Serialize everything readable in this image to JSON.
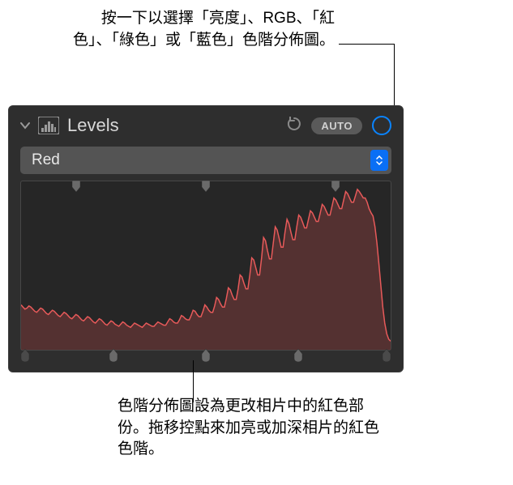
{
  "annotations": {
    "top": "按一下以選擇「亮度」、RGB、「紅色」、「綠色」或「藍色」色階分佈圖。",
    "bottom": "色階分佈圖設為更改相片中的紅色部份。拖移控點來加亮或加深相片的紅色色階。"
  },
  "panel": {
    "title": "Levels",
    "auto_label": "AUTO",
    "dropdown_value": "Red"
  },
  "histogram": {
    "type": "area",
    "fill_color": "#7a3a3a",
    "fill_opacity": 0.55,
    "stroke_color": "#e85a5a",
    "stroke_width": 1.5,
    "background_color": "#262626",
    "values": [
      42,
      40,
      38,
      39,
      41,
      40,
      38,
      36,
      35,
      37,
      39,
      38,
      36,
      34,
      33,
      35,
      37,
      36,
      34,
      32,
      31,
      33,
      35,
      34,
      32,
      30,
      29,
      31,
      33,
      32,
      30,
      28,
      27,
      29,
      31,
      30,
      28,
      26,
      25,
      27,
      29,
      28,
      26,
      24,
      23,
      25,
      27,
      26,
      24,
      23,
      22,
      24,
      26,
      25,
      23,
      22,
      21,
      23,
      25,
      24,
      23,
      22,
      21,
      23,
      25,
      24,
      23,
      22,
      22,
      24,
      26,
      25,
      24,
      23,
      23,
      26,
      29,
      28,
      26,
      25,
      25,
      28,
      32,
      31,
      29,
      28,
      28,
      32,
      37,
      36,
      33,
      31,
      31,
      36,
      42,
      40,
      37,
      35,
      35,
      41,
      49,
      47,
      43,
      40,
      40,
      48,
      58,
      56,
      51,
      47,
      47,
      57,
      70,
      68,
      62,
      57,
      57,
      70,
      86,
      84,
      77,
      70,
      70,
      86,
      105,
      102,
      93,
      85,
      85,
      100,
      115,
      112,
      104,
      96,
      96,
      110,
      122,
      118,
      110,
      103,
      103,
      115,
      126,
      124,
      119,
      114,
      114,
      122,
      130,
      128,
      124,
      120,
      120,
      128,
      136,
      134,
      130,
      126,
      126,
      134,
      142,
      140,
      136,
      132,
      132,
      140,
      148,
      146,
      142,
      138,
      138,
      144,
      150,
      148,
      145,
      142,
      142,
      138,
      132,
      128,
      125,
      115,
      100,
      80,
      60,
      40,
      25,
      15,
      10,
      8
    ],
    "top_handles": [
      15,
      50,
      85
    ],
    "bottom_handles": [
      1,
      25,
      50,
      75,
      99
    ],
    "handle_color": "#6a6a6a",
    "handle_color_dark": "#4a4a4a"
  },
  "colors": {
    "panel_bg": "#2e2e2e",
    "panel_header_text": "#d8d8d8",
    "auto_bg": "#5a5a5a",
    "circle_stroke": "#0a84ff",
    "dropdown_bg": "#545454",
    "dropdown_arrow_bg": "#0a6ff5"
  }
}
